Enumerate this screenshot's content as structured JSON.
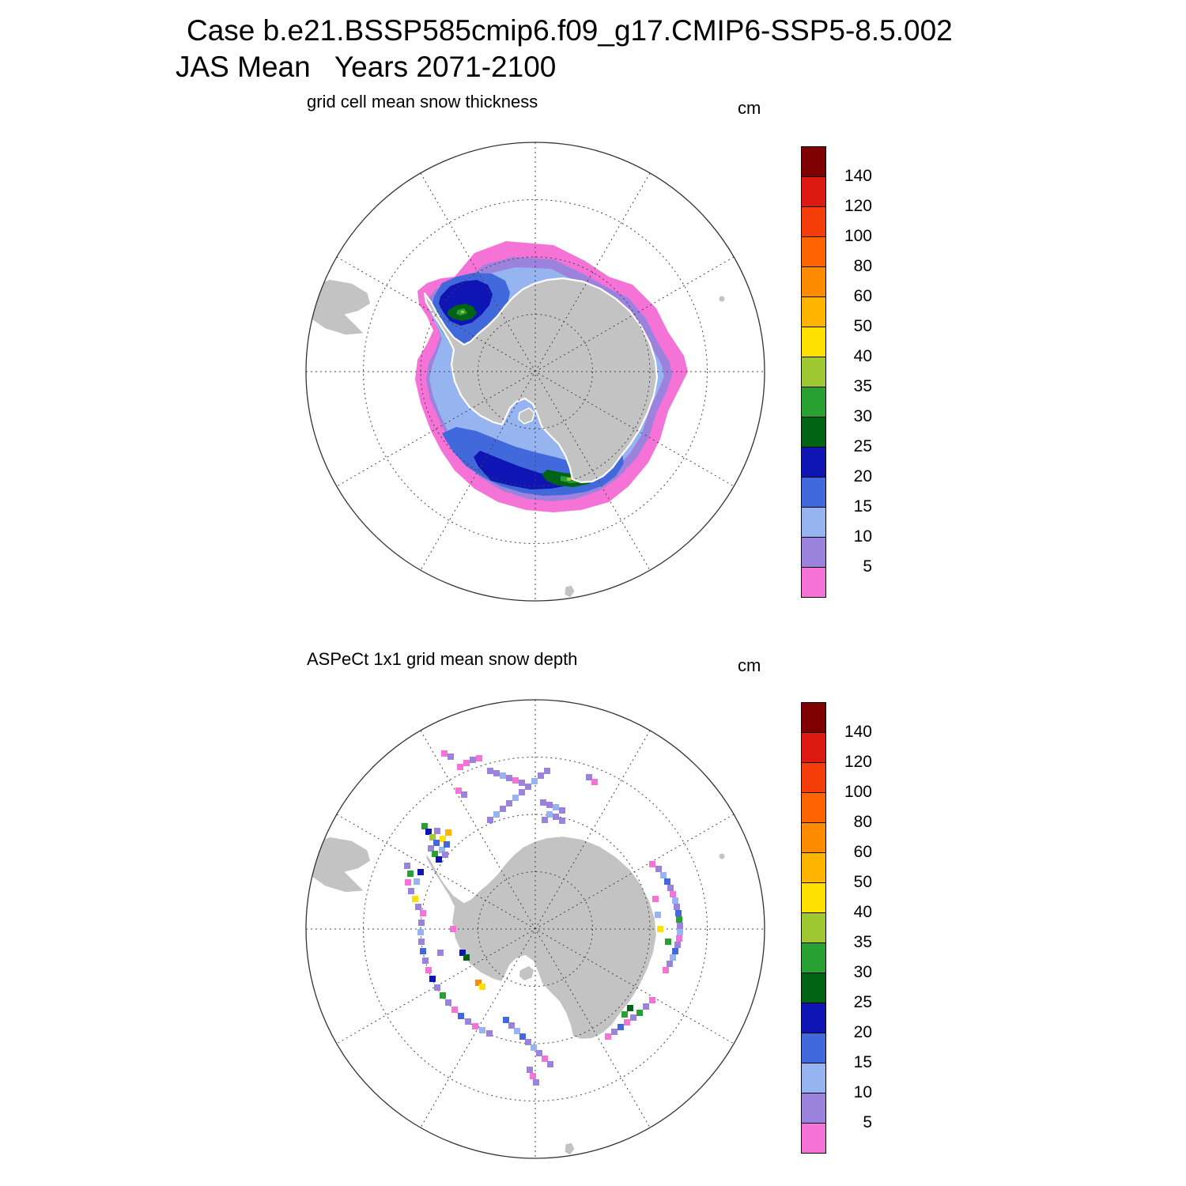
{
  "header": {
    "line1": "Case b.e21.BSSP585cmip6.f09_g17.CMIP6-SSP5-8.5.002",
    "line2": "JAS Mean   Years 2071-2100"
  },
  "panels": [
    {
      "title": "grid cell mean snow thickness",
      "units": "cm"
    },
    {
      "title": "ASPeCt 1x1 grid mean snow depth",
      "units": "cm"
    }
  ],
  "colorbar": {
    "tick_labels": [
      "140",
      "120",
      "100",
      "80",
      "60",
      "50",
      "40",
      "35",
      "30",
      "25",
      "20",
      "15",
      "10",
      "5"
    ],
    "colors_top_to_bottom": [
      "#7E0000",
      "#DC1912",
      "#F53D0A",
      "#FF6400",
      "#FF8C00",
      "#FFB400",
      "#FFE000",
      "#A0C832",
      "#28A032",
      "#006414",
      "#0F14B4",
      "#4169DC",
      "#96B4F0",
      "#9B82DC",
      "#F573D7"
    ]
  },
  "chart_data": [
    {
      "type": "heatmap",
      "subtype": "filled-contour-south-polar-map",
      "title": "grid cell mean snow thickness",
      "units": "cm",
      "projection": "south polar stereographic",
      "levels": [
        5,
        10,
        15,
        20,
        25,
        30,
        35,
        40,
        50,
        60,
        80,
        100,
        120,
        140
      ],
      "palette_low_to_high": [
        "#F573D7",
        "#9B82DC",
        "#96B4F0",
        "#4169DC",
        "#0F14B4",
        "#006414",
        "#28A032",
        "#A0C832",
        "#FFE000",
        "#FFB400",
        "#FF8C00",
        "#FF6400",
        "#F53D0A",
        "#DC1912",
        "#7E0000"
      ],
      "observed_maxima_regions": [
        "western Weddell Sea ~30-40 cm",
        "Ross Sea coast ~30-40 cm"
      ],
      "regions": [
        {
          "range_cm": "0-5",
          "color": "#F573D7",
          "polys": [
            "198,180 223,150 263,135 323,140 363,160 393,180 423,190 453,220 468,250 488,280 493,300 483,320 468,350 458,385 443,415 418,445 393,465 358,475 323,478 288,475 253,465 223,448 198,425 181,400 168,375 155,340 148,310 151,285 163,265 171,248 163,230 153,215 151,198 163,188 181,182"
          ]
        },
        {
          "range_cm": "5-10",
          "color": "#9B82DC",
          "polys": [
            "205,190 235,165 272,155 323,158 360,176 390,193 418,207 440,233 455,263 470,288 473,305 466,325 453,352 444,382 429,408 405,434 380,451 350,461 320,464 290,461 259,451 231,434 207,412 192,388 179,362 167,335 162,310 165,290 174,272 180,255 174,238 165,222 164,208 174,196 190,189"
          ]
        },
        {
          "range_cm": "10-15",
          "color": "#96B4F0",
          "polys": [
            "215,196 242,176 275,168 320,170 352,186 382,200 408,214 431,240 447,268 460,292 463,306 456,323 444,349 435,379 420,403 398,426 372,443 345,453 315,456 285,453 256,443 229,426 206,403 191,379 179,353 170,329 166,309 170,291 177,273 182,258 176,243 168,227 168,213 178,201 195,196"
          ]
        },
        {
          "range_cm": "15-20",
          "color": "#4169DC",
          "polys": [
            "172,205 182,188 200,180 222,175 245,176 262,185 268,200 264,218 255,235 245,252 232,263 215,268 198,264 184,252 174,235 168,220",
            "182,378 200,370 225,375 250,385 275,395 300,402 325,408 350,415 375,418 395,415 410,404 412,416 402,432 386,444 364,452 338,456 310,457 283,453 257,445 233,433 212,419 196,401 187,387"
          ]
        },
        {
          "range_cm": "20-25",
          "color": "#0F14B4",
          "polys": [
            "180,205 192,192 208,186 226,184 240,190 246,202 242,216 232,228 220,238 206,242 192,236 183,224 178,214",
            "230,400 255,410 280,420 305,428 330,433 352,434 342,444 320,448 294,449 268,444 244,438 228,420 222,408"
          ]
        },
        {
          "range_cm": "25-30",
          "color": "#006414",
          "polys": [
            "190,222 200,216 212,214 222,218 226,226 220,233 208,236 196,233 189,228",
            "315,424 335,428 355,430 372,428 378,434 368,442 348,446 328,444 314,438 308,430"
          ]
        },
        {
          "range_cm": "30-35",
          "color": "#28A032",
          "polys": [
            "202,222 210,220 214,226 206,229 200,227",
            "332,432 348,434 360,434 358,440 344,441 332,438"
          ]
        },
        {
          "range_cm": "35-40",
          "color": "#A0C832",
          "polys": [
            "206,223 210,223 210,226 206,226",
            "340,434 346,434 346,438 340,438"
          ]
        }
      ]
    },
    {
      "type": "scatter",
      "subtype": "ship-observation-grid-cells",
      "title": "ASPeCt 1x1 grid mean snow depth",
      "units": "cm",
      "projection": "south polar stereographic",
      "palette": [
        "#F573D7",
        "#9B82DC",
        "#96B4F0",
        "#4169DC",
        "#0F14B4",
        "#006414",
        "#28A032",
        "#A0C832",
        "#FFE000",
        "#FFB400",
        "#FF8C00"
      ],
      "palette_bins_cm": [
        "0-5",
        "5-10",
        "10-15",
        "15-20",
        "20-25",
        "25-30",
        "30-35",
        "35-40",
        "40-50",
        "50-60",
        "60-80"
      ],
      "points": [
        [
          205,
          95,
          0
        ],
        [
          213,
          90,
          0
        ],
        [
          221,
          86,
          1
        ],
        [
          229,
          84,
          0
        ],
        [
          185,
          78,
          0
        ],
        [
          193,
          82,
          1
        ],
        [
          203,
          125,
          0
        ],
        [
          210,
          130,
          1
        ],
        [
          243,
          100,
          1
        ],
        [
          251,
          103,
          1
        ],
        [
          259,
          106,
          2
        ],
        [
          267,
          109,
          1
        ],
        [
          275,
          112,
          0
        ],
        [
          283,
          115,
          1
        ],
        [
          243,
          162,
          1
        ],
        [
          251,
          155,
          2
        ],
        [
          259,
          148,
          1
        ],
        [
          267,
          141,
          1
        ],
        [
          275,
          134,
          2
        ],
        [
          283,
          127,
          1
        ],
        [
          291,
          120,
          1
        ],
        [
          299,
          113,
          2
        ],
        [
          307,
          106,
          1
        ],
        [
          315,
          100,
          1
        ],
        [
          310,
          140,
          1
        ],
        [
          318,
          143,
          1
        ],
        [
          326,
          146,
          2
        ],
        [
          334,
          150,
          1
        ],
        [
          318,
          155,
          2
        ],
        [
          326,
          158,
          1
        ],
        [
          312,
          162,
          1
        ],
        [
          334,
          163,
          1
        ],
        [
          368,
          108,
          1
        ],
        [
          375,
          114,
          0
        ],
        [
          448,
          218,
          0
        ],
        [
          456,
          224,
          1
        ],
        [
          462,
          232,
          2
        ],
        [
          467,
          240,
          3
        ],
        [
          471,
          248,
          1
        ],
        [
          474,
          256,
          0
        ],
        [
          477,
          264,
          2
        ],
        [
          479,
          272,
          1
        ],
        [
          481,
          280,
          3
        ],
        [
          482,
          288,
          6
        ],
        [
          483,
          296,
          1
        ],
        [
          483,
          304,
          2
        ],
        [
          482,
          312,
          0
        ],
        [
          480,
          320,
          1
        ],
        [
          477,
          328,
          3
        ],
        [
          474,
          336,
          2
        ],
        [
          470,
          344,
          1
        ],
        [
          465,
          352,
          0
        ],
        [
          468,
          316,
          6
        ],
        [
          458,
          300,
          8
        ],
        [
          452,
          262,
          0
        ],
        [
          455,
          282,
          2
        ],
        [
          448,
          390,
          0
        ],
        [
          440,
          398,
          1
        ],
        [
          432,
          406,
          6
        ],
        [
          424,
          412,
          1
        ],
        [
          416,
          418,
          0
        ],
        [
          408,
          424,
          3
        ],
        [
          400,
          430,
          1
        ],
        [
          392,
          436,
          0
        ],
        [
          413,
          408,
          6
        ],
        [
          420,
          400,
          5
        ],
        [
          263,
          415,
          3
        ],
        [
          270,
          422,
          1
        ],
        [
          277,
          429,
          2
        ],
        [
          284,
          436,
          3
        ],
        [
          291,
          443,
          1
        ],
        [
          298,
          450,
          2
        ],
        [
          305,
          457,
          1
        ],
        [
          312,
          464,
          0
        ],
        [
          319,
          471,
          1
        ],
        [
          293,
          478,
          1
        ],
        [
          297,
          486,
          0
        ],
        [
          301,
          494,
          1
        ],
        [
          158,
          280,
          0
        ],
        [
          156,
          292,
          1
        ],
        [
          155,
          304,
          2
        ],
        [
          156,
          316,
          1
        ],
        [
          158,
          328,
          3
        ],
        [
          161,
          340,
          1
        ],
        [
          165,
          352,
          0
        ],
        [
          170,
          363,
          4
        ],
        [
          176,
          374,
          1
        ],
        [
          183,
          384,
          6
        ],
        [
          190,
          393,
          1
        ],
        [
          198,
          402,
          0
        ],
        [
          206,
          410,
          3
        ],
        [
          215,
          417,
          1
        ],
        [
          224,
          423,
          0
        ],
        [
          233,
          428,
          2
        ],
        [
          242,
          432,
          1
        ],
        [
          228,
          368,
          10
        ],
        [
          233,
          373,
          8
        ],
        [
          208,
          330,
          4
        ],
        [
          213,
          336,
          5
        ],
        [
          180,
          330,
          1
        ],
        [
          196,
          300,
          0
        ],
        [
          138,
          220,
          1
        ],
        [
          142,
          230,
          6
        ],
        [
          139,
          241,
          0
        ],
        [
          143,
          252,
          1
        ],
        [
          148,
          262,
          8
        ],
        [
          152,
          272,
          1
        ],
        [
          150,
          240,
          2
        ],
        [
          155,
          228,
          4
        ],
        [
          160,
          170,
          6
        ],
        [
          165,
          177,
          4
        ],
        [
          170,
          184,
          7
        ],
        [
          175,
          191,
          3
        ],
        [
          168,
          198,
          1
        ],
        [
          173,
          205,
          6
        ],
        [
          178,
          212,
          4
        ],
        [
          182,
          200,
          2
        ],
        [
          176,
          176,
          1
        ],
        [
          183,
          186,
          8
        ],
        [
          188,
          193,
          3
        ],
        [
          186,
          206,
          1
        ],
        [
          190,
          178,
          9
        ]
      ]
    }
  ]
}
